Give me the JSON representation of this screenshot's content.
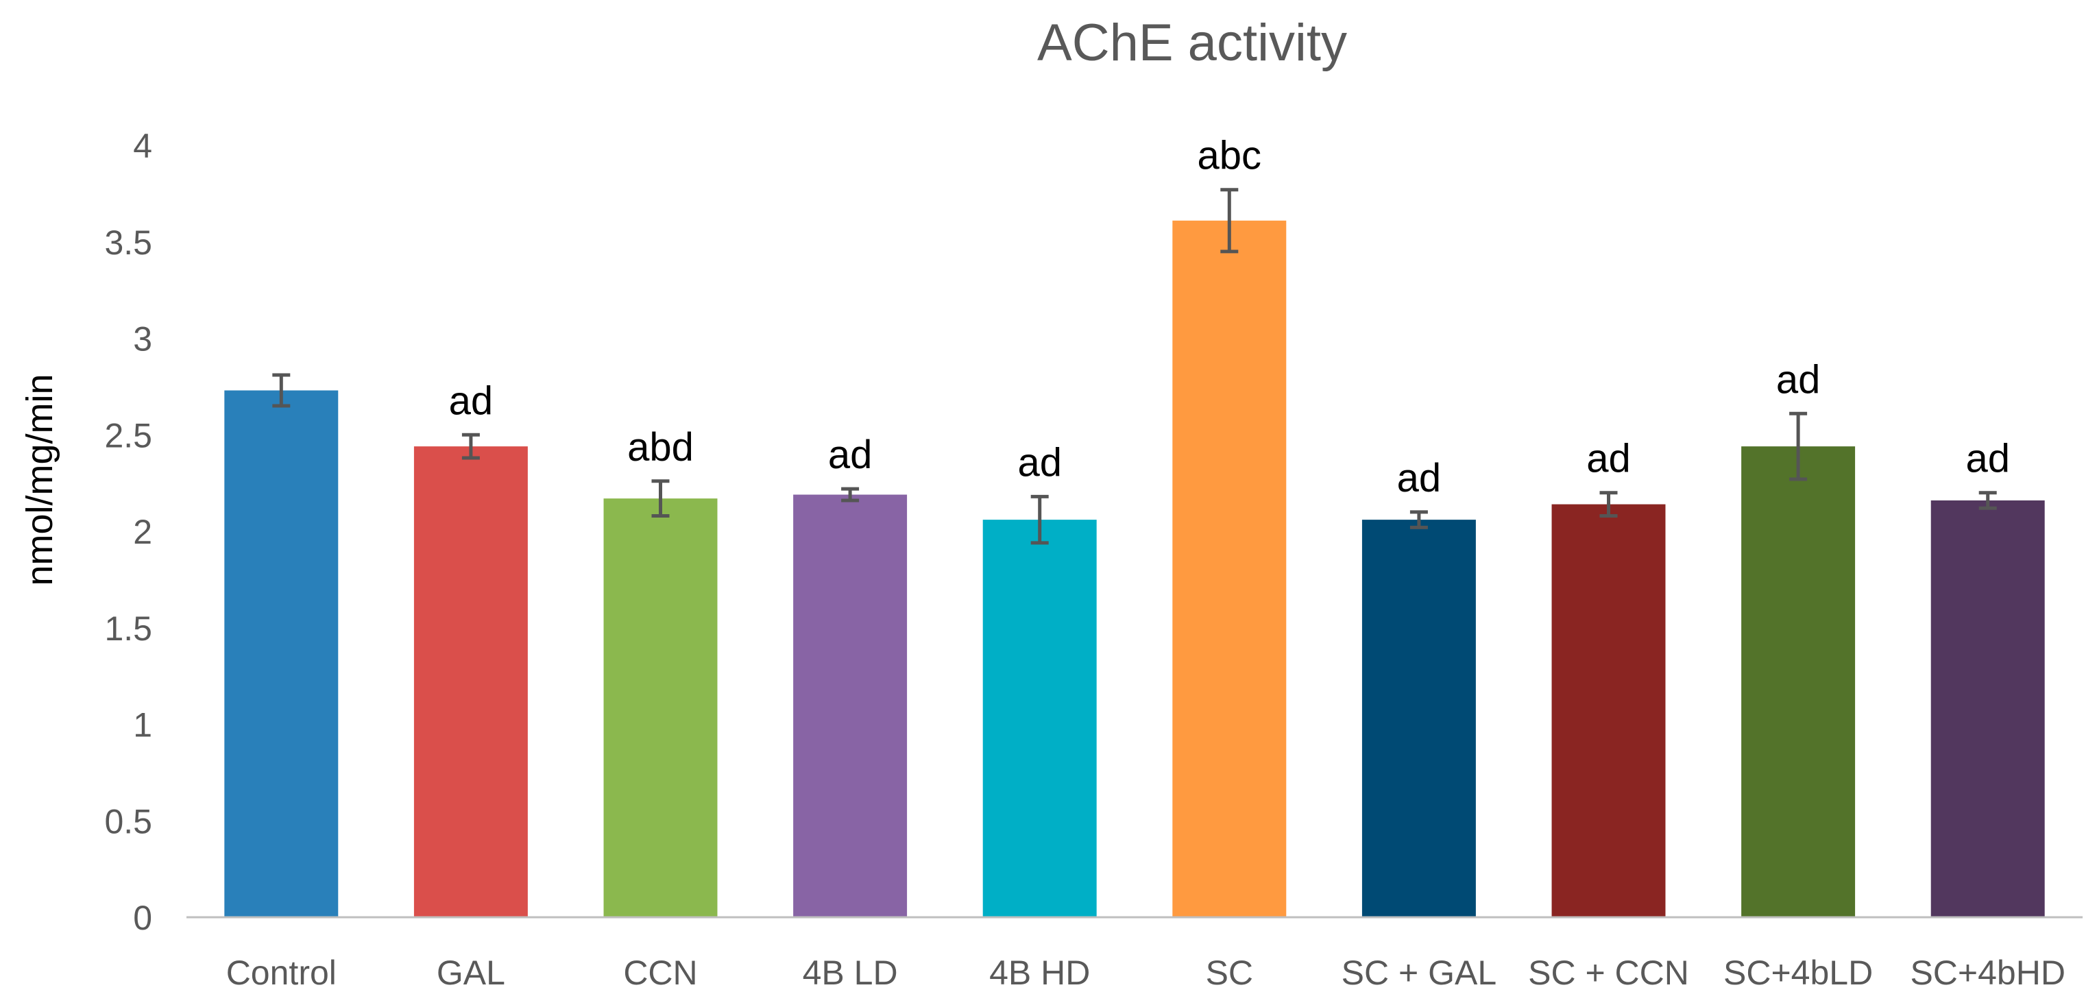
{
  "chart_data": {
    "type": "bar",
    "title": "AChE activity",
    "ylabel": "nmol/mg/min",
    "xlabel": "",
    "ylim": [
      0,
      4
    ],
    "yticks": [
      0,
      0.5,
      1,
      1.5,
      2,
      2.5,
      3,
      3.5,
      4
    ],
    "ytick_labels": [
      "0",
      "0.5",
      "1",
      "1.5",
      "2",
      "2.5",
      "3",
      "3.5",
      "4"
    ],
    "grid": false,
    "legend": "none",
    "categories": [
      "Control",
      "GAL",
      "CCN",
      "4B LD",
      "4B HD",
      "SC",
      "SC + GAL",
      "SC + CCN",
      "SC+4bLD",
      "SC+4bHD"
    ],
    "values": [
      2.73,
      2.44,
      2.17,
      2.19,
      2.06,
      3.61,
      2.06,
      2.14,
      2.44,
      2.16
    ],
    "errors": [
      0.08,
      0.06,
      0.09,
      0.03,
      0.12,
      0.16,
      0.04,
      0.06,
      0.17,
      0.04
    ],
    "annotations": [
      "",
      "ad",
      "abd",
      "ad",
      "ad",
      "abc",
      "ad",
      "ad",
      "ad",
      "ad"
    ],
    "colors": [
      "#2980BA",
      "#DA4F4B",
      "#8BB84E",
      "#8864A5",
      "#00AFC6",
      "#FF9A40",
      "#004A74",
      "#8A2522",
      "#53732A",
      "#52375E"
    ],
    "axis_color": "#BFBFBF",
    "text_color": "#595959",
    "error_color": "#555555"
  }
}
